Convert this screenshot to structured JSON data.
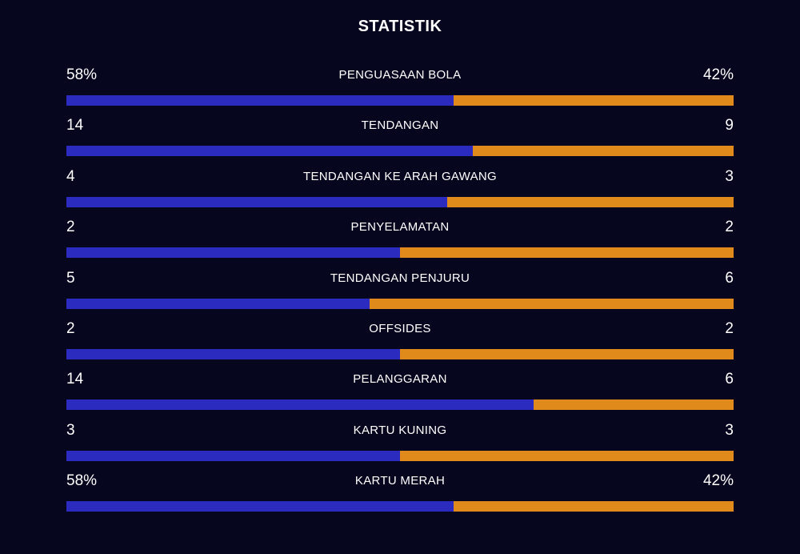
{
  "title": "STATISTIK",
  "colors": {
    "background": "#07061f",
    "home_bar": "#2b2bbf",
    "away_bar": "#e08a1c",
    "text": "#ffffff"
  },
  "stats": [
    {
      "label": "PENGUASAAN BOLA",
      "home": "58%",
      "away": "42%",
      "home_share": 0.58
    },
    {
      "label": "TENDANGAN",
      "home": "14",
      "away": "9",
      "home_share": 0.609
    },
    {
      "label": "TENDANGAN KE ARAH GAWANG",
      "home": "4",
      "away": "3",
      "home_share": 0.571
    },
    {
      "label": "PENYELAMATAN",
      "home": "2",
      "away": "2",
      "home_share": 0.5
    },
    {
      "label": "TENDANGAN PENJURU",
      "home": "5",
      "away": "6",
      "home_share": 0.455
    },
    {
      "label": "OFFSIDES",
      "home": "2",
      "away": "2",
      "home_share": 0.5
    },
    {
      "label": "PELANGGARAN",
      "home": "14",
      "away": "6",
      "home_share": 0.7
    },
    {
      "label": "KARTU KUNING",
      "home": "3",
      "away": "3",
      "home_share": 0.5
    },
    {
      "label": "KARTU MERAH",
      "home": "58%",
      "away": "42%",
      "home_share": 0.58
    }
  ]
}
